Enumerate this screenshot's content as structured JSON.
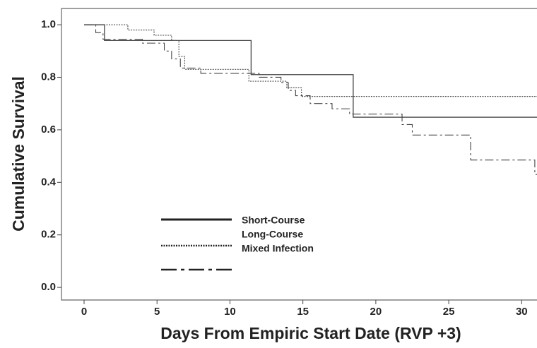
{
  "chart_data": {
    "type": "step",
    "x_label": "Days From Empiric Start Date (RVP +3)",
    "y_label": "Cumulative Survival",
    "xlim": [
      -1.55,
      31.05
    ],
    "ylim": [
      -0.048,
      1.062
    ],
    "xticks": [
      0,
      5,
      10,
      15,
      20,
      25,
      30
    ],
    "yticks": [
      {
        "value": 0,
        "label": "0.0"
      },
      0.2,
      0.4,
      0.6,
      0.8,
      {
        "value": 1,
        "label": "1.0"
      }
    ],
    "series": [
      {
        "name": "Short-Course",
        "color": "#444444",
        "dash": "solid",
        "x": [
          0,
          1.4,
          11.45,
          18.45,
          31.05
        ],
        "values": [
          1.0,
          0.94,
          0.81,
          0.648,
          0.648
        ]
      },
      {
        "name": "Long-Course",
        "color": "#555555",
        "dash": "dotted",
        "x": [
          0,
          3.0,
          4.8,
          6.0,
          6.5,
          6.9,
          11.3,
          13.9,
          14.9,
          31.05
        ],
        "values": [
          1.0,
          0.98,
          0.96,
          0.94,
          0.88,
          0.83,
          0.785,
          0.76,
          0.727,
          0.727
        ]
      },
      {
        "name": "Mixed Infection",
        "color": "#444444",
        "dash": "dashdot",
        "x": [
          0,
          0.8,
          1.3,
          4.0,
          5.5,
          6.0,
          6.6,
          8.0,
          12.0,
          13.5,
          14.0,
          14.5,
          15.5,
          17.0,
          18.2,
          21.8,
          22.5,
          26.5,
          30.9,
          31.05
        ],
        "values": [
          1.0,
          0.97,
          0.945,
          0.93,
          0.9,
          0.87,
          0.835,
          0.815,
          0.8,
          0.78,
          0.75,
          0.73,
          0.7,
          0.68,
          0.66,
          0.62,
          0.58,
          0.485,
          0.43,
          0.43
        ]
      }
    ]
  }
}
